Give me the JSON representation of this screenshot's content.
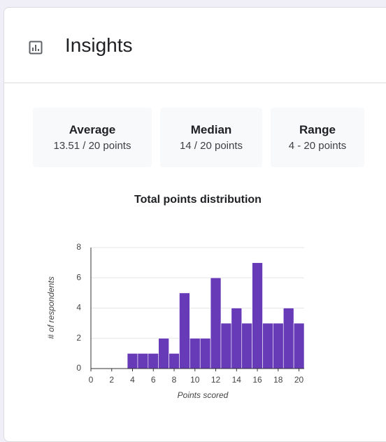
{
  "header": {
    "title": "Insights"
  },
  "stats": [
    {
      "label": "Average",
      "value": "13.51 / 20 points"
    },
    {
      "label": "Median",
      "value": "14 / 20 points"
    },
    {
      "label": "Range",
      "value": "4 - 20 points"
    }
  ],
  "chart_data": {
    "type": "histogram",
    "title": "Total points distribution",
    "x_label": "Points scored",
    "y_label": "# of respondents",
    "bins": [
      3.5,
      4.5,
      5.5,
      6.5,
      7.5,
      8.5,
      9.5,
      10.5,
      11.5,
      12.5,
      13.5,
      14.5,
      15.5,
      16.5,
      17.5,
      18.5,
      19.5,
      20.5
    ],
    "counts": [
      1,
      1,
      1,
      2,
      1,
      5,
      2,
      2,
      6,
      3,
      4,
      3,
      7,
      3,
      3,
      4,
      3
    ],
    "color": "#673ab7",
    "xlim": [
      0,
      20.5
    ],
    "ylim": [
      0,
      8
    ],
    "xticks": [
      0,
      2,
      4,
      6,
      8,
      10,
      12,
      14,
      16,
      18,
      20
    ],
    "yticks": [
      0,
      2,
      4,
      6,
      8
    ],
    "grid": true
  }
}
